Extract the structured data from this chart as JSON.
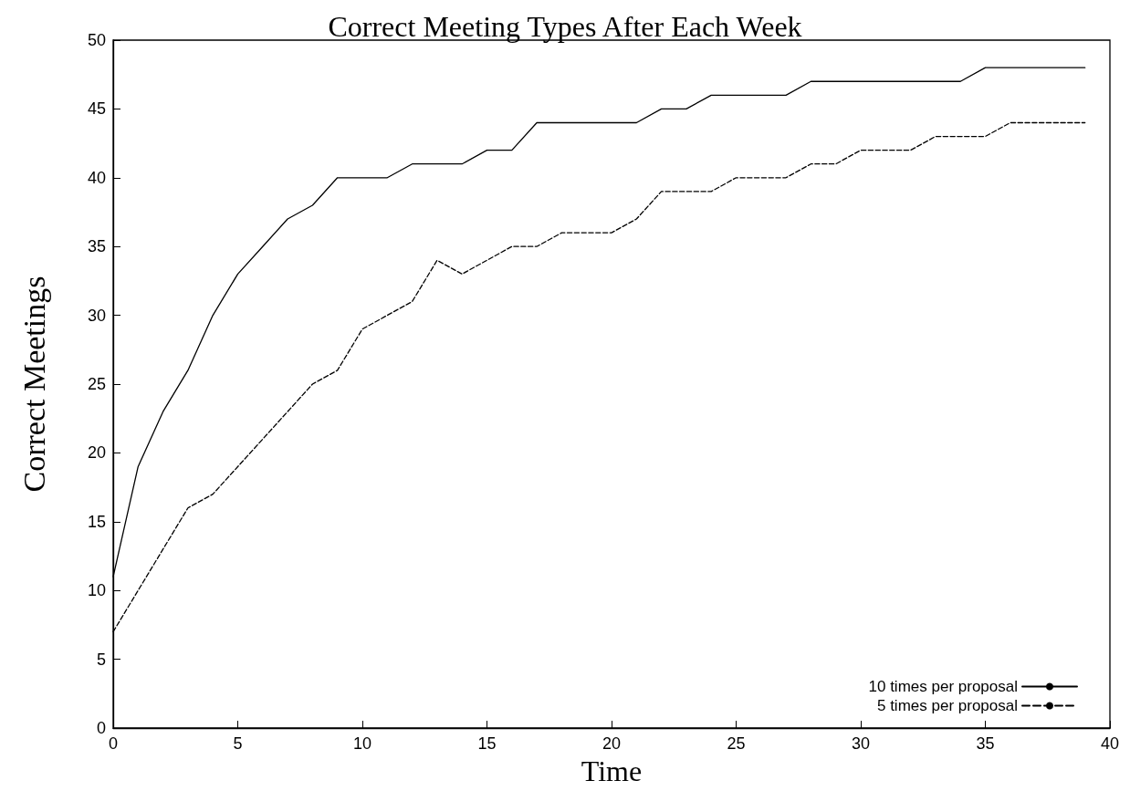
{
  "chart_data": {
    "type": "line",
    "title": "Correct Meeting Types After Each Week",
    "xlabel": "Time",
    "ylabel": "Correct Meetings",
    "x": [
      0,
      1,
      2,
      3,
      4,
      5,
      6,
      7,
      8,
      9,
      10,
      11,
      12,
      13,
      14,
      15,
      16,
      17,
      18,
      19,
      20,
      21,
      22,
      23,
      24,
      25,
      26,
      27,
      28,
      29,
      30,
      31,
      32,
      33,
      34,
      35,
      36,
      37,
      38,
      39
    ],
    "series": [
      {
        "name": "10 times per proposal",
        "color": "#000000",
        "line_style": "solid",
        "values": [
          11,
          19,
          23,
          26,
          30,
          33,
          35,
          37,
          38,
          40,
          40,
          40,
          41,
          41,
          41,
          42,
          42,
          44,
          44,
          44,
          44,
          44,
          45,
          45,
          46,
          46,
          46,
          46,
          47,
          47,
          47,
          47,
          47,
          47,
          47,
          48,
          48,
          48,
          48,
          48
        ]
      },
      {
        "name": "5 times per proposal",
        "color": "#000000",
        "line_style": "dashed",
        "values": [
          7,
          10,
          13,
          16,
          17,
          19,
          21,
          23,
          25,
          26,
          29,
          30,
          31,
          34,
          33,
          34,
          35,
          35,
          36,
          36,
          36,
          37,
          39,
          39,
          39,
          40,
          40,
          40,
          41,
          41,
          42,
          42,
          42,
          43,
          43,
          43,
          44,
          44,
          44,
          44
        ]
      }
    ],
    "xlim": [
      0,
      40
    ],
    "xticks": [
      0,
      5,
      10,
      15,
      20,
      25,
      30,
      35,
      40
    ],
    "ylim": [
      0,
      50
    ],
    "yticks": [
      0,
      5,
      10,
      15,
      20,
      25,
      30,
      35,
      40,
      45,
      50
    ],
    "grid": false,
    "legend": "bottom right",
    "marker": "none"
  }
}
